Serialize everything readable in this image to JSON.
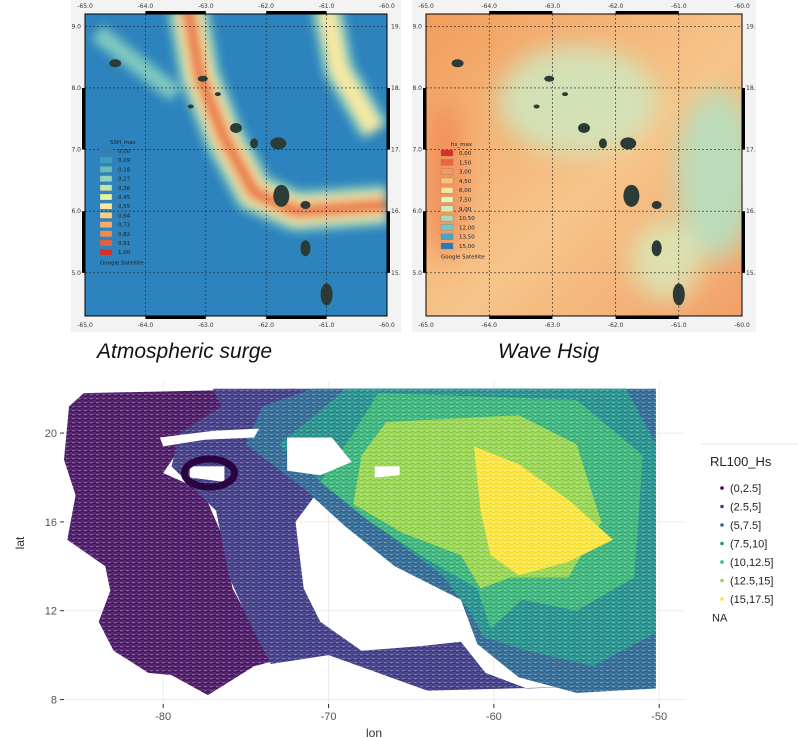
{
  "captions": {
    "left": "Atmospheric surge",
    "right": "Wave Hsig"
  },
  "chart_data": [
    {
      "type": "heatmap",
      "panel": "left",
      "caption": "Atmospheric surge",
      "legend_title": "SSH_max",
      "legend_levels": [
        "0,00",
        "0,09",
        "0,18",
        "0,27",
        "0,36",
        "0,45",
        "0,55",
        "0,64",
        "0,73",
        "0,82",
        "0,91",
        "1,00"
      ],
      "legend_colors": [
        "#2f7fb8",
        "#3f9ec0",
        "#63bfc0",
        "#8fd4bb",
        "#bde6b0",
        "#e6f4a8",
        "#fbe9a0",
        "#f9cf86",
        "#f6ae6c",
        "#f08a56",
        "#e55f3f",
        "#d7302b"
      ],
      "legend_source": "Google Satellite",
      "x_ticks": [
        "-65.0",
        "-64.0",
        "-63.0",
        "-62.0",
        "-61.0",
        "-60.0"
      ],
      "y_ticks": [
        "15.0",
        "16.0",
        "17.0",
        "18.0",
        "19.0"
      ],
      "xlim": [
        -65,
        -60
      ],
      "ylim": [
        14.3,
        19.2
      ]
    },
    {
      "type": "heatmap",
      "panel": "right",
      "caption": "Wave Hsig",
      "legend_title": "hs_max",
      "legend_levels": [
        "0,00",
        "1,50",
        "3,00",
        "4,50",
        "6,00",
        "7,50",
        "9,00",
        "10,50",
        "12,00",
        "13,50",
        "15,00"
      ],
      "legend_colors": [
        "#d7302b",
        "#e9673f",
        "#f39a5c",
        "#f8c27e",
        "#fbe3a0",
        "#f4f0b2",
        "#d6ecb7",
        "#a8dcbb",
        "#78c4c0",
        "#4ea3c1",
        "#2c7bb6"
      ],
      "legend_source": "Google Satellite",
      "x_ticks": [
        "-65.0",
        "-64.0",
        "-63.0",
        "-62.0",
        "-61.0",
        "-60.0"
      ],
      "y_ticks": [
        "15.0",
        "16.0",
        "17.0",
        "18.0",
        "19.0"
      ],
      "xlim": [
        -65,
        -60
      ],
      "ylim": [
        14.3,
        19.2
      ]
    },
    {
      "type": "scatter",
      "panel": "bottom",
      "xlabel": "lon",
      "ylabel": "lat",
      "x_ticks": [
        -80,
        -70,
        -60,
        -50
      ],
      "y_ticks": [
        8,
        12,
        16,
        20
      ],
      "xlim": [
        -86,
        -48.5
      ],
      "ylim": [
        7.8,
        22.3
      ],
      "legend_title": "RL100_Hs",
      "series": [
        {
          "name": "(0,2.5]",
          "color": "#440154"
        },
        {
          "name": "(2.5,5]",
          "color": "#443983"
        },
        {
          "name": "(5,7.5]",
          "color": "#31688e"
        },
        {
          "name": "(7.5,10]",
          "color": "#21908d"
        },
        {
          "name": "(10,12.5]",
          "color": "#35b779"
        },
        {
          "name": "(12.5,15]",
          "color": "#90d743"
        },
        {
          "name": "(15,17.5]",
          "color": "#fde725"
        },
        {
          "name": "NA",
          "color": "#ffffff"
        }
      ],
      "grid": true,
      "legend_position": "right"
    }
  ]
}
